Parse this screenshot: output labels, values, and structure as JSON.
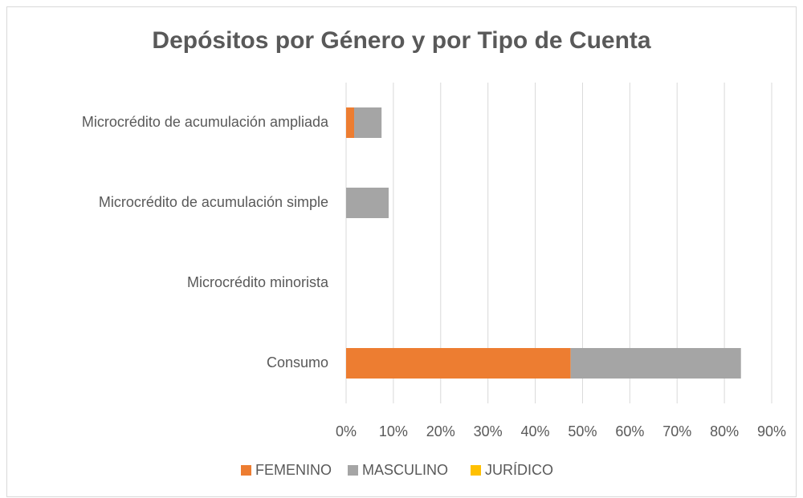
{
  "chart_data": {
    "type": "bar",
    "orientation": "horizontal",
    "stacked": true,
    "title": "Depósitos por Género y por Tipo de Cuenta",
    "categories": [
      "Microcrédito de acumulación ampliada",
      "Microcrédito de acumulación simple",
      "Microcrédito minorista",
      "Consumo"
    ],
    "series": [
      {
        "name": "FEMENINO",
        "color": "#ed7d31",
        "values": [
          1.7,
          0,
          0,
          47.5
        ]
      },
      {
        "name": "MASCULINO",
        "color": "#a5a5a5",
        "values": [
          5.8,
          9.0,
          0,
          36.0
        ]
      },
      {
        "name": "JURÍDICO",
        "color": "#ffc000",
        "values": [
          0,
          0,
          0,
          0
        ]
      }
    ],
    "xlim": [
      0,
      90
    ],
    "xticks": [
      {
        "value": 0,
        "label": "0%"
      },
      {
        "value": 10,
        "label": "10%"
      },
      {
        "value": 20,
        "label": "20%"
      },
      {
        "value": 30,
        "label": "30%"
      },
      {
        "value": 40,
        "label": "40%"
      },
      {
        "value": 50,
        "label": "50%"
      },
      {
        "value": 60,
        "label": "60%"
      },
      {
        "value": 70,
        "label": "70%"
      },
      {
        "value": 80,
        "label": "80%"
      },
      {
        "value": 90,
        "label": "90%"
      }
    ],
    "grid": true,
    "legend": "bottom"
  }
}
